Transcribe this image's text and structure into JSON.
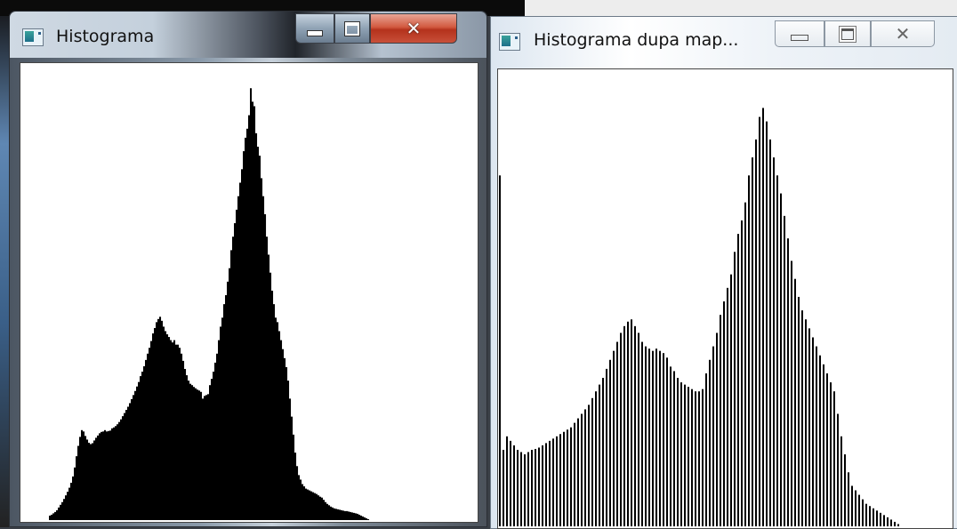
{
  "windows": [
    {
      "title": "Histograma",
      "icon": "app-window-icon",
      "controls": {
        "minimize": "minimize-icon",
        "maximize": "maximize-icon",
        "close": "close-icon"
      },
      "fill_color": "#000000",
      "bar_spacing": 1
    },
    {
      "title": "Histograma dupa map...",
      "icon": "app-window-icon",
      "controls": {
        "minimize": "minimize-icon",
        "maximize": "maximize-icon",
        "close": "close-icon"
      },
      "fill_color": "#000000",
      "bar_spacing": 4
    }
  ],
  "chart_data": [
    {
      "type": "bar",
      "x_range": [
        0,
        255
      ],
      "ylim": [
        0,
        1
      ],
      "values": [
        0.0,
        0.0,
        0.0,
        0.0,
        0.0,
        0.0,
        0.0,
        0.0,
        0.0,
        0.0,
        0.0,
        0.0,
        0.0,
        0.0,
        0.0,
        0.0,
        0.01,
        0.012,
        0.015,
        0.018,
        0.022,
        0.028,
        0.034,
        0.04,
        0.047,
        0.055,
        0.063,
        0.072,
        0.083,
        0.097,
        0.117,
        0.142,
        0.165,
        0.185,
        0.2,
        0.197,
        0.187,
        0.179,
        0.172,
        0.169,
        0.171,
        0.177,
        0.183,
        0.188,
        0.193,
        0.196,
        0.197,
        0.2,
        0.197,
        0.198,
        0.199,
        0.204,
        0.206,
        0.209,
        0.213,
        0.218,
        0.224,
        0.231,
        0.238,
        0.245,
        0.252,
        0.26,
        0.269,
        0.278,
        0.287,
        0.297,
        0.307,
        0.32,
        0.33,
        0.342,
        0.356,
        0.37,
        0.383,
        0.398,
        0.415,
        0.427,
        0.44,
        0.447,
        0.452,
        0.443,
        0.43,
        0.42,
        0.413,
        0.407,
        0.4,
        0.395,
        0.4,
        0.39,
        0.39,
        0.383,
        0.37,
        0.354,
        0.336,
        0.322,
        0.31,
        0.303,
        0.3,
        0.296,
        0.293,
        0.29,
        0.288,
        0.285,
        0.27,
        0.276,
        0.278,
        0.28,
        0.3,
        0.314,
        0.33,
        0.35,
        0.37,
        0.4,
        0.43,
        0.45,
        0.48,
        0.5,
        0.53,
        0.56,
        0.6,
        0.63,
        0.66,
        0.69,
        0.72,
        0.75,
        0.78,
        0.82,
        0.85,
        0.87,
        0.9,
        0.96,
        0.93,
        0.92,
        0.86,
        0.83,
        0.81,
        0.76,
        0.72,
        0.68,
        0.63,
        0.59,
        0.55,
        0.51,
        0.48,
        0.45,
        0.44,
        0.42,
        0.4,
        0.38,
        0.36,
        0.34,
        0.31,
        0.27,
        0.23,
        0.19,
        0.15,
        0.12,
        0.1,
        0.09,
        0.08,
        0.075,
        0.07,
        0.068,
        0.066,
        0.064,
        0.062,
        0.06,
        0.058,
        0.055,
        0.052,
        0.05,
        0.045,
        0.04,
        0.036,
        0.033,
        0.03,
        0.028,
        0.026,
        0.025,
        0.024,
        0.023,
        0.022,
        0.021,
        0.02,
        0.02,
        0.019,
        0.018,
        0.017,
        0.016,
        0.015,
        0.014,
        0.012,
        0.01,
        0.008,
        0.006,
        0.004,
        0.002,
        0.0,
        0.0,
        0.0,
        0.0,
        0.0,
        0.0,
        0.0,
        0.0,
        0.0,
        0.0,
        0.0,
        0.0,
        0.0,
        0.0,
        0.0,
        0.0,
        0.0,
        0.0,
        0.0,
        0.0,
        0.0,
        0.0,
        0.0,
        0.0,
        0.0,
        0.0,
        0.0,
        0.0,
        0.0,
        0.0,
        0.0,
        0.0,
        0.0,
        0.0,
        0.0,
        0.0,
        0.0,
        0.0,
        0.0,
        0.0,
        0.0,
        0.0,
        0.0,
        0.0,
        0.0,
        0.0,
        0.0,
        0.0,
        0.0,
        0.0,
        0.0,
        0.0,
        0.0,
        0.0,
        0.0,
        0.0,
        0.0,
        0.0,
        0.0,
        0.0
      ]
    },
    {
      "type": "bar",
      "x_range": [
        0,
        127
      ],
      "ylim": [
        0,
        1
      ],
      "values": [
        0.78,
        0.17,
        0.2,
        0.19,
        0.18,
        0.17,
        0.165,
        0.16,
        0.165,
        0.17,
        0.172,
        0.175,
        0.18,
        0.185,
        0.19,
        0.195,
        0.2,
        0.205,
        0.21,
        0.215,
        0.22,
        0.23,
        0.24,
        0.25,
        0.26,
        0.27,
        0.285,
        0.3,
        0.315,
        0.33,
        0.35,
        0.37,
        0.39,
        0.41,
        0.43,
        0.445,
        0.455,
        0.46,
        0.445,
        0.43,
        0.41,
        0.4,
        0.395,
        0.39,
        0.395,
        0.39,
        0.385,
        0.375,
        0.355,
        0.345,
        0.33,
        0.32,
        0.315,
        0.31,
        0.305,
        0.3,
        0.3,
        0.305,
        0.34,
        0.37,
        0.4,
        0.43,
        0.47,
        0.5,
        0.53,
        0.56,
        0.61,
        0.65,
        0.68,
        0.72,
        0.78,
        0.82,
        0.86,
        0.91,
        0.93,
        0.9,
        0.86,
        0.82,
        0.78,
        0.74,
        0.69,
        0.64,
        0.59,
        0.55,
        0.51,
        0.48,
        0.46,
        0.44,
        0.42,
        0.4,
        0.38,
        0.36,
        0.34,
        0.32,
        0.3,
        0.25,
        0.2,
        0.16,
        0.12,
        0.09,
        0.08,
        0.07,
        0.06,
        0.05,
        0.045,
        0.04,
        0.035,
        0.03,
        0.025,
        0.02,
        0.015,
        0.01,
        0.005,
        0.0,
        0.0,
        0.0,
        0.0,
        0.0,
        0.0,
        0.0,
        0.0,
        0.0,
        0.0,
        0.0,
        0.0,
        0.0,
        0.0,
        0.0
      ]
    }
  ]
}
